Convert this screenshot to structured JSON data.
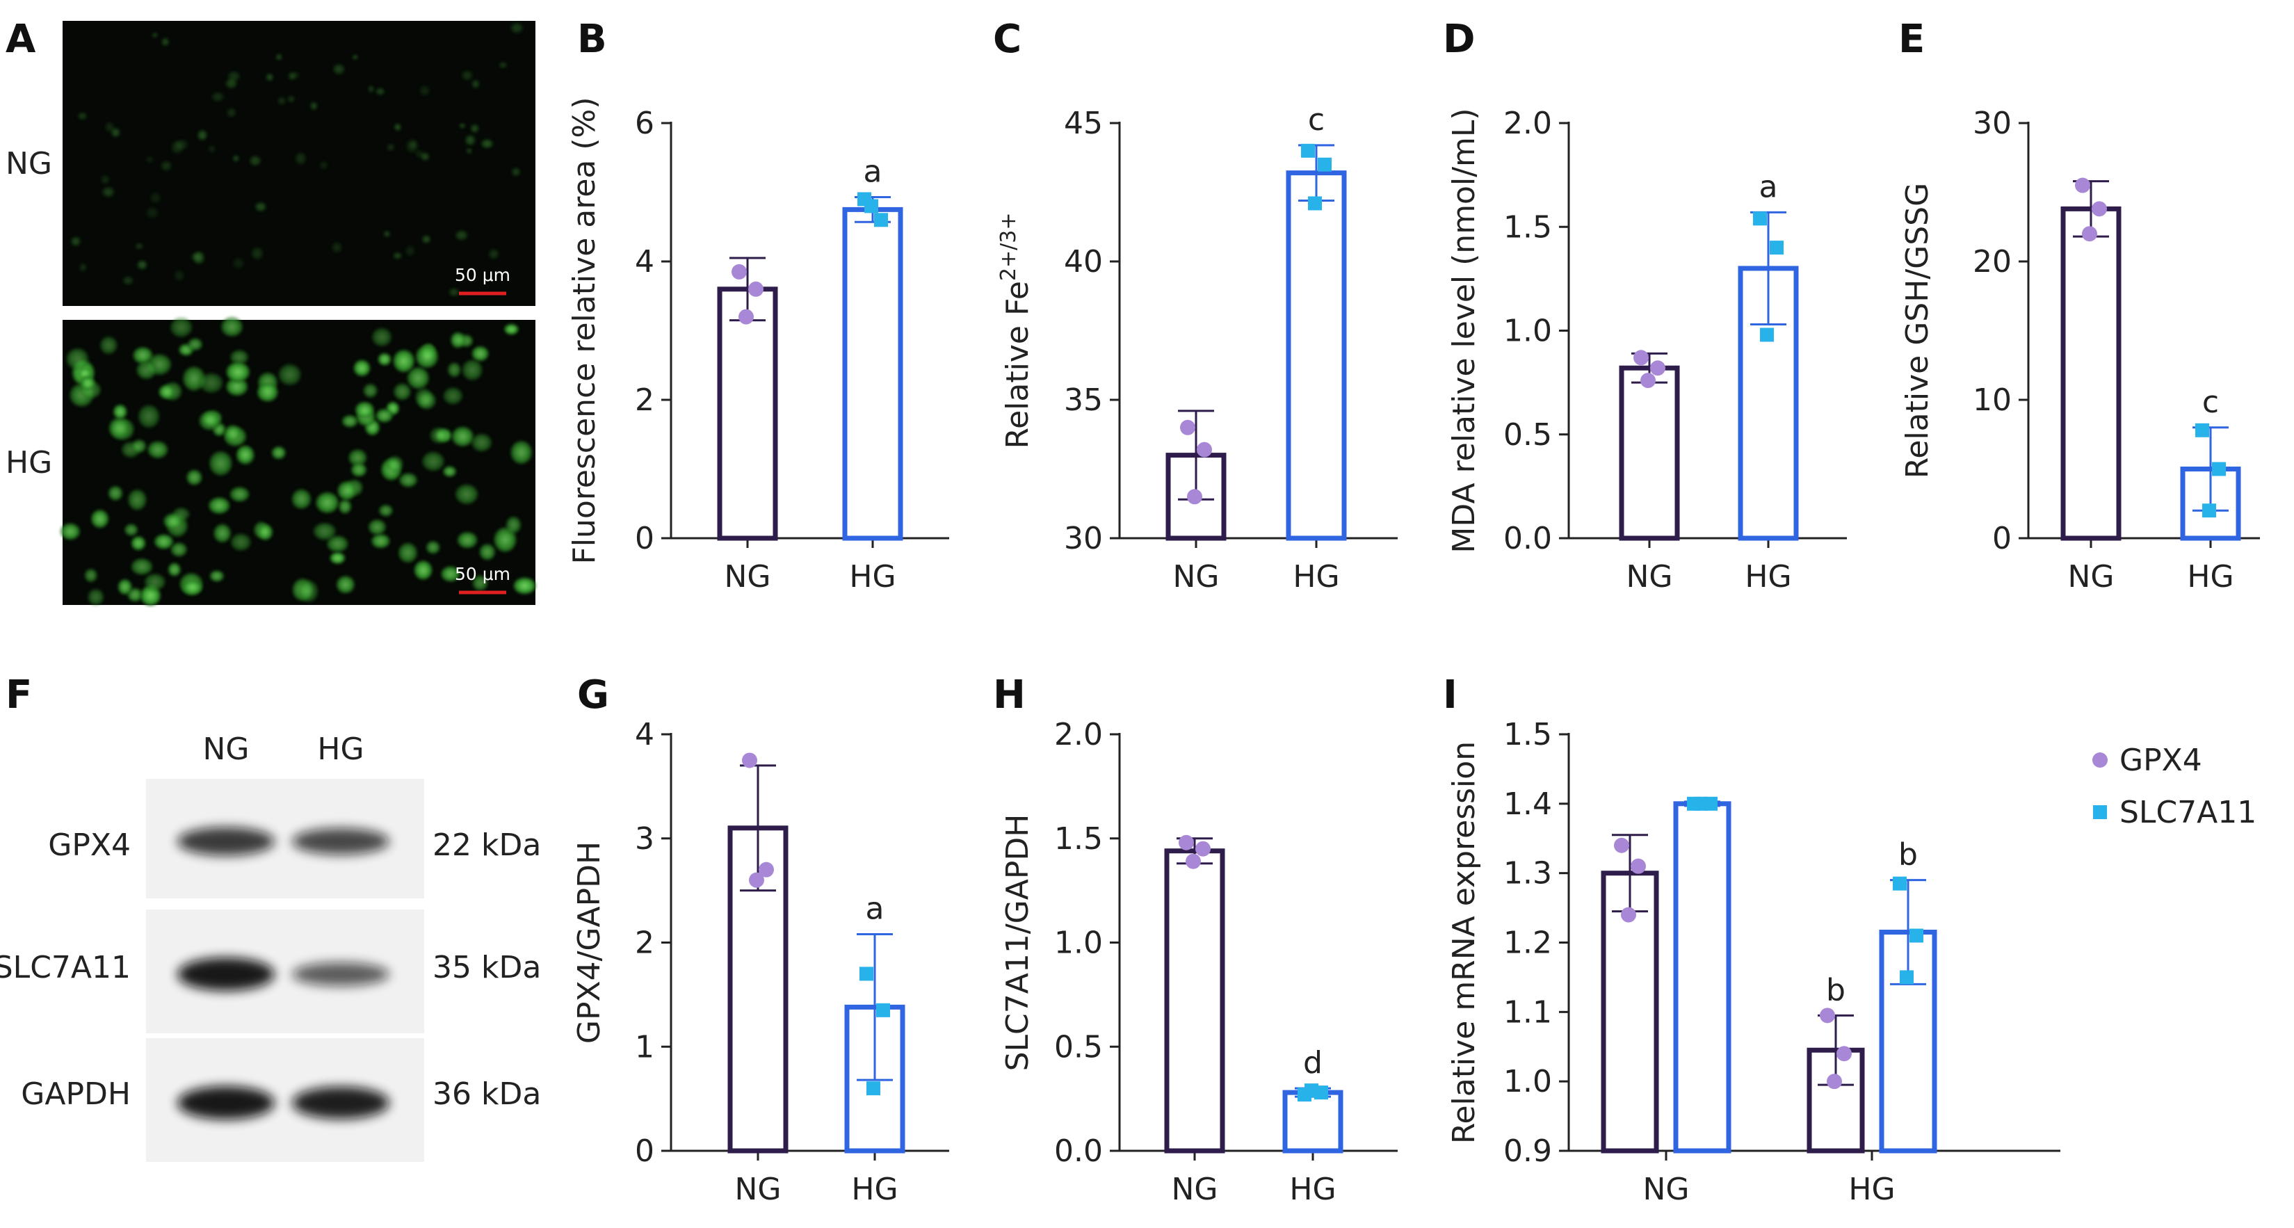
{
  "panel_letters": [
    "A",
    "B",
    "C",
    "D",
    "E",
    "F",
    "G",
    "H",
    "I"
  ],
  "panel_a": {
    "row_labels": [
      "NG",
      "HG"
    ],
    "scale_bar": "50 μm",
    "colors": {
      "background": "#050805",
      "cells": "#3fae35",
      "scale": "#e02020"
    }
  },
  "panel_f": {
    "lane_labels": [
      "NG",
      "HG"
    ],
    "proteins": [
      {
        "name": "GPX4",
        "size": "22 kDa",
        "ng_intensity": 0.75,
        "hg_intensity": 0.65
      },
      {
        "name": "SLC7A11",
        "size": "35 kDa",
        "ng_intensity": 1.0,
        "hg_intensity": 0.5
      },
      {
        "name": "GAPDH",
        "size": "36 kDa",
        "ng_intensity": 1.0,
        "hg_intensity": 0.95
      }
    ]
  },
  "colors": {
    "ng_bar": "#2e1d4a",
    "hg_bar": "#2f65e0",
    "ng_point": "#a888d6",
    "hg_point": "#27b2ea"
  },
  "chart_data": [
    {
      "id": "B",
      "type": "bar",
      "categories": [
        "NG",
        "HG"
      ],
      "values": [
        3.6,
        4.75
      ],
      "errors": [
        0.45,
        0.18
      ],
      "points": [
        [
          3.85,
          3.6,
          3.2
        ],
        [
          4.9,
          4.6,
          4.8
        ]
      ],
      "significance": [
        "",
        "a"
      ],
      "ylabel": "Fluorescence relative area (%)",
      "ylim": [
        0,
        6
      ],
      "yticks": [
        0,
        2,
        4,
        6
      ],
      "ytick_labels": [
        "0",
        "2",
        "4",
        "6"
      ]
    },
    {
      "id": "C",
      "type": "bar",
      "categories": [
        "NG",
        "HG"
      ],
      "values": [
        33.0,
        43.2
      ],
      "errors": [
        1.6,
        1.0
      ],
      "points": [
        [
          34.0,
          33.2,
          31.5
        ],
        [
          44.0,
          43.5,
          42.1
        ]
      ],
      "significance": [
        "",
        "c"
      ],
      "ylabel": "Relative Fe2+/3+",
      "ylim": [
        30,
        45
      ],
      "yticks": [
        30,
        35,
        40,
        45
      ],
      "ytick_labels": [
        "30",
        "35",
        "40",
        "45"
      ]
    },
    {
      "id": "D",
      "type": "bar",
      "categories": [
        "NG",
        "HG"
      ],
      "values": [
        0.82,
        1.3
      ],
      "errors": [
        0.07,
        0.27
      ],
      "points": [
        [
          0.87,
          0.82,
          0.76
        ],
        [
          1.54,
          1.4,
          0.98
        ]
      ],
      "significance": [
        "",
        "a"
      ],
      "ylabel": "MDA relative level (nmol/mL)",
      "ylim": [
        0.0,
        2.0
      ],
      "yticks": [
        0.0,
        0.5,
        1.0,
        1.5,
        2.0
      ],
      "ytick_labels": [
        "0.0",
        "0.5",
        "1.0",
        "1.5",
        "2.0"
      ]
    },
    {
      "id": "E",
      "type": "bar",
      "categories": [
        "NG",
        "HG"
      ],
      "values": [
        23.8,
        5.0
      ],
      "errors": [
        2.0,
        3.0
      ],
      "points": [
        [
          25.5,
          23.8,
          22.0
        ],
        [
          7.8,
          5.0,
          2.0
        ]
      ],
      "significance": [
        "",
        "c"
      ],
      "ylabel": "Relative GSH/GSSG",
      "ylim": [
        0,
        30
      ],
      "yticks": [
        0,
        10,
        20,
        30
      ],
      "ytick_labels": [
        "0",
        "10",
        "20",
        "30"
      ]
    },
    {
      "id": "G",
      "type": "bar",
      "categories": [
        "NG",
        "HG"
      ],
      "values": [
        3.1,
        1.38
      ],
      "errors": [
        0.6,
        0.7
      ],
      "points": [
        [
          3.75,
          2.7,
          2.6
        ],
        [
          1.7,
          1.35,
          0.6
        ]
      ],
      "significance": [
        "",
        "a"
      ],
      "ylabel": "GPX4/GAPDH",
      "ylim": [
        0,
        4
      ],
      "yticks": [
        0,
        1,
        2,
        3,
        4
      ],
      "ytick_labels": [
        "0",
        "1",
        "2",
        "3",
        "4"
      ]
    },
    {
      "id": "H",
      "type": "bar",
      "categories": [
        "NG",
        "HG"
      ],
      "values": [
        1.44,
        0.28
      ],
      "errors": [
        0.06,
        0.02
      ],
      "points": [
        [
          1.48,
          1.45,
          1.39
        ],
        [
          0.27,
          0.28,
          0.29
        ]
      ],
      "significance": [
        "",
        "d"
      ],
      "ylabel": "SLC7A11/GAPDH",
      "ylim": [
        0.0,
        2.0
      ],
      "yticks": [
        0.0,
        0.5,
        1.0,
        1.5,
        2.0
      ],
      "ytick_labels": [
        "0.0",
        "0.5",
        "1.0",
        "1.5",
        "2.0"
      ]
    },
    {
      "id": "I",
      "type": "bar",
      "categories": [
        "NG",
        "HG"
      ],
      "series": [
        {
          "name": "GPX4",
          "values": [
            1.3,
            1.045
          ],
          "errors": [
            0.055,
            0.05
          ],
          "points": [
            [
              1.34,
              1.31,
              1.24
            ],
            [
              1.095,
              1.04,
              1.0
            ]
          ],
          "significance": [
            "",
            "b"
          ]
        },
        {
          "name": "SLC7A11",
          "values": [
            1.4,
            1.215
          ],
          "errors": [
            0.003,
            0.075
          ],
          "points": [
            [
              1.4,
              1.4,
              1.4
            ],
            [
              1.285,
              1.21,
              1.15
            ]
          ],
          "significance": [
            "",
            "b"
          ]
        }
      ],
      "ylabel": "Relative mRNA expression",
      "ylim": [
        0.9,
        1.5
      ],
      "yticks": [
        0.9,
        1.0,
        1.1,
        1.2,
        1.3,
        1.4,
        1.5
      ],
      "ytick_labels": [
        "0.9",
        "1.0",
        "1.1",
        "1.2",
        "1.3",
        "1.4",
        "1.5"
      ],
      "legend": "top-right"
    }
  ]
}
